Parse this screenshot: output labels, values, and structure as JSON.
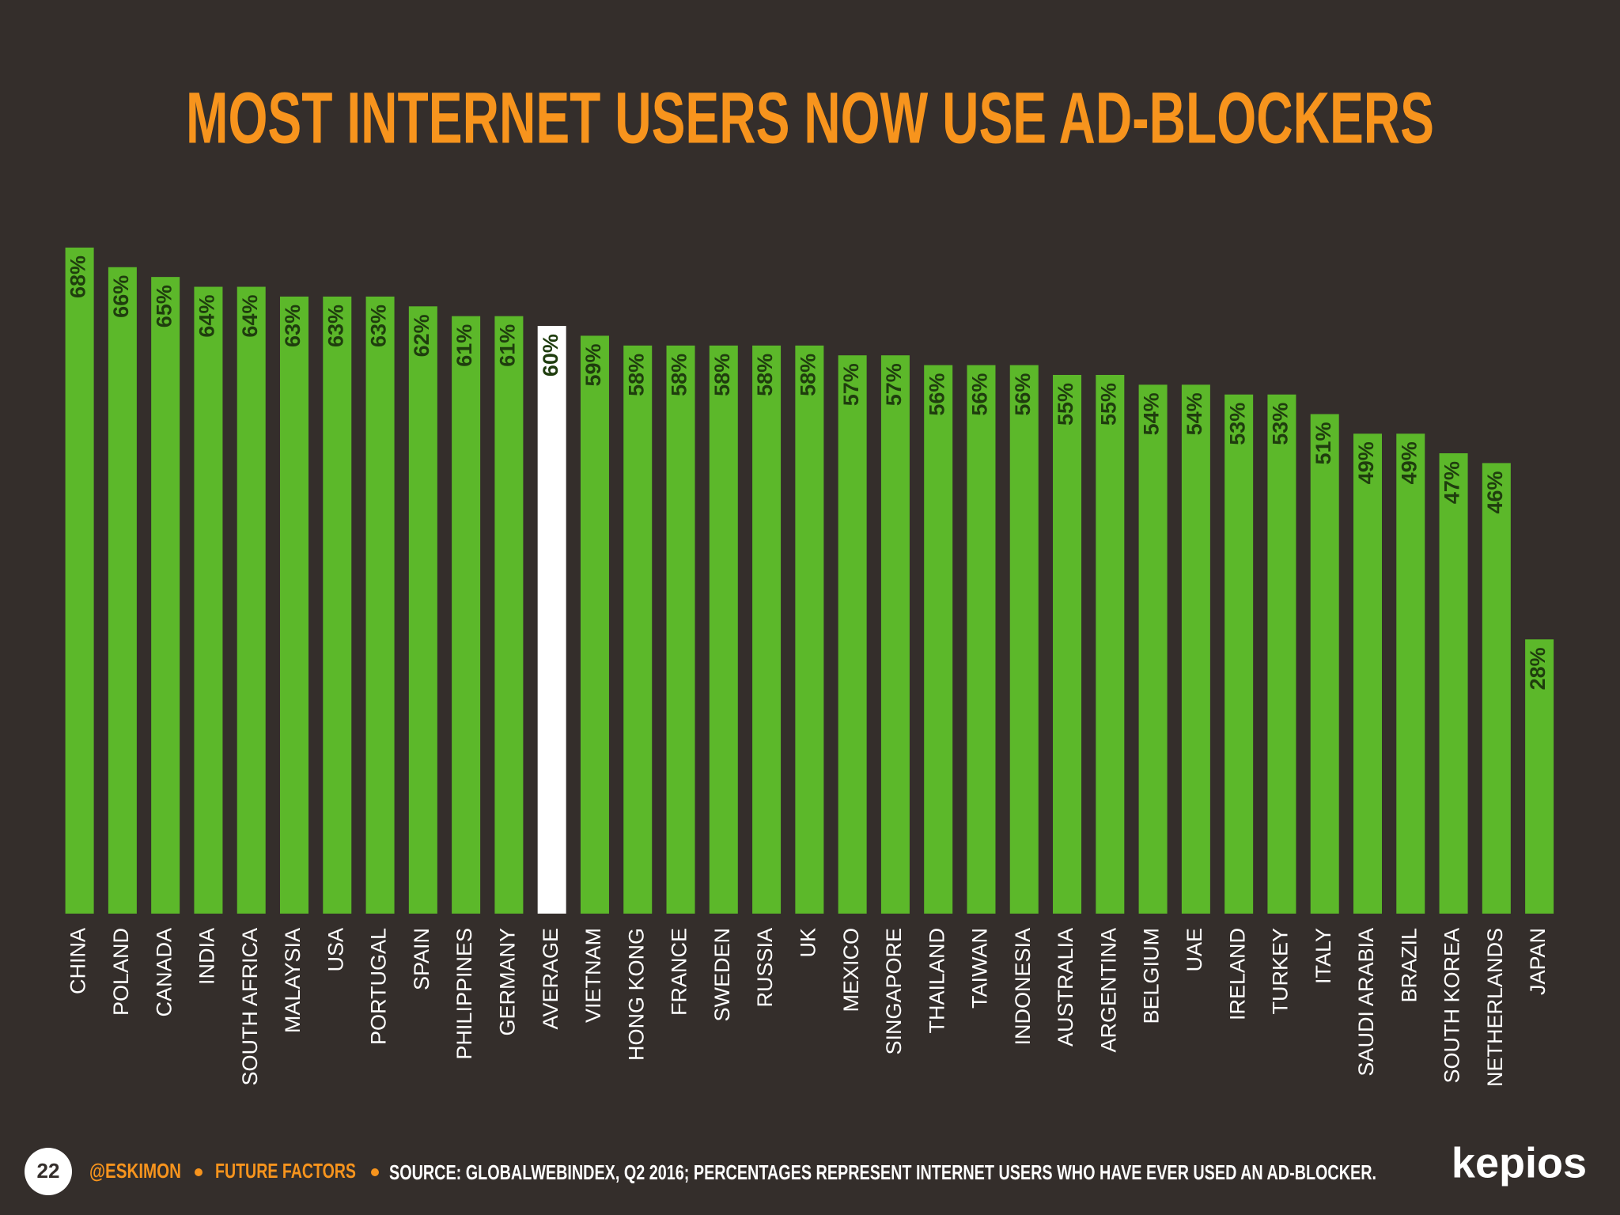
{
  "chart_data": {
    "type": "bar",
    "title": "MOST INTERNET USERS NOW USE AD-BLOCKERS",
    "categories": [
      "CHINA",
      "POLAND",
      "CANADA",
      "INDIA",
      "SOUTH AFRICA",
      "MALAYSIA",
      "USA",
      "PORTUGAL",
      "SPAIN",
      "PHILIPPINES",
      "GERMANY",
      "AVERAGE",
      "VIETNAM",
      "HONG KONG",
      "FRANCE",
      "SWEDEN",
      "RUSSIA",
      "UK",
      "MEXICO",
      "SINGAPORE",
      "THAILAND",
      "TAIWAN",
      "INDONESIA",
      "AUSTRALIA",
      "ARGENTINA",
      "BELGIUM",
      "UAE",
      "IRELAND",
      "TURKEY",
      "ITALY",
      "SAUDI ARABIA",
      "BRAZIL",
      "SOUTH KOREA",
      "NETHERLANDS",
      "JAPAN"
    ],
    "values": [
      68,
      66,
      65,
      64,
      64,
      63,
      63,
      63,
      62,
      61,
      61,
      60,
      59,
      58,
      58,
      58,
      58,
      58,
      57,
      57,
      56,
      56,
      56,
      55,
      55,
      54,
      54,
      53,
      53,
      51,
      49,
      49,
      47,
      46,
      28
    ],
    "value_labels": [
      "68%",
      "66%",
      "65%",
      "64%",
      "64%",
      "63%",
      "63%",
      "63%",
      "62%",
      "61%",
      "61%",
      "60%",
      "59%",
      "58%",
      "58%",
      "58%",
      "58%",
      "58%",
      "57%",
      "57%",
      "56%",
      "56%",
      "56%",
      "55%",
      "55%",
      "54%",
      "54%",
      "53%",
      "53%",
      "51%",
      "49%",
      "49%",
      "47%",
      "46%",
      "28%"
    ],
    "colors": [
      "#5cb82a",
      "#5cb82a",
      "#5cb82a",
      "#5cb82a",
      "#5cb82a",
      "#5cb82a",
      "#5cb82a",
      "#5cb82a",
      "#5cb82a",
      "#5cb82a",
      "#5cb82a",
      "#ffffff",
      "#5cb82a",
      "#5cb82a",
      "#5cb82a",
      "#5cb82a",
      "#5cb82a",
      "#5cb82a",
      "#5cb82a",
      "#5cb82a",
      "#5cb82a",
      "#5cb82a",
      "#5cb82a",
      "#5cb82a",
      "#5cb82a",
      "#5cb82a",
      "#5cb82a",
      "#5cb82a",
      "#5cb82a",
      "#5cb82a",
      "#5cb82a",
      "#5cb82a",
      "#5cb82a",
      "#5cb82a",
      "#5cb82a"
    ],
    "ylim": [
      0,
      68
    ]
  },
  "footer": {
    "page": "22",
    "handle": "@ESKIMON",
    "series": "FUTURE FACTORS",
    "source": "SOURCE: GLOBALWEBINDEX, Q2 2016; PERCENTAGES REPRESENT INTERNET USERS WHO HAVE EVER USED AN AD-BLOCKER.",
    "logo": "kepios"
  }
}
